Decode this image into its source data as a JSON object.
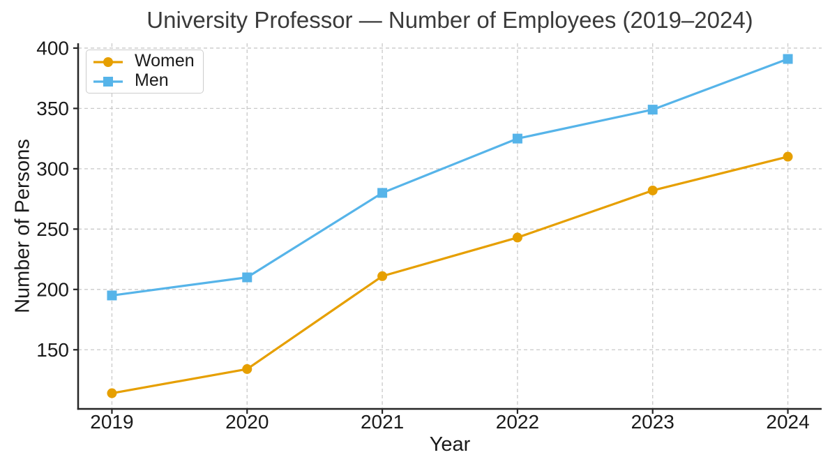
{
  "chart_data": {
    "type": "line",
    "title": "University Professor — Number of Employees (2019–2024)",
    "xlabel": "Year",
    "ylabel": "Number of Persons",
    "x": [
      2019,
      2020,
      2021,
      2022,
      2023,
      2024
    ],
    "x_tick_labels": [
      "2019",
      "2020",
      "2021",
      "2022",
      "2023",
      "2024"
    ],
    "y_ticks": [
      150,
      200,
      250,
      300,
      350,
      400
    ],
    "xlim": [
      2018.75,
      2024.25
    ],
    "ylim": [
      101,
      404
    ],
    "grid": true,
    "grid_style": "dashed",
    "legend": {
      "position": "upper-left"
    },
    "series": [
      {
        "name": "Women",
        "color": "#E69F00",
        "marker": "circle",
        "values": [
          114,
          134,
          211,
          243,
          282,
          310
        ]
      },
      {
        "name": "Men",
        "color": "#56B4E9",
        "marker": "square",
        "values": [
          195,
          210,
          280,
          325,
          349,
          391
        ]
      }
    ],
    "styles": {
      "grid_color": "#c9c9c9",
      "spine_color": "#262626",
      "tick_label_color": "#1a1a1a",
      "title_color": "#3a3a3a",
      "background": "#ffffff"
    }
  }
}
